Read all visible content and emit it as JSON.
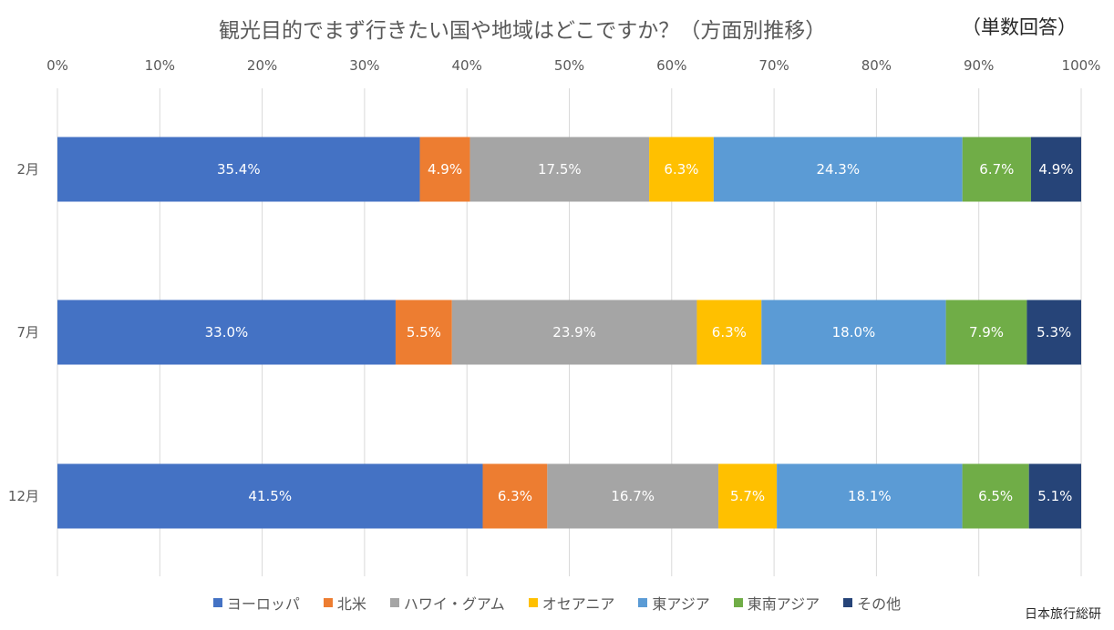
{
  "title": "観光目的でまず行きたい国や地域はどこですか？（方面別推移）",
  "note": "（単数回答）",
  "source": "日本旅行総研",
  "colors": {
    "ヨーロッパ": "#4472C4",
    "北米": "#ED7D31",
    "ハワイ・グアム": "#A5A5A5",
    "オセアニア": "#FFC000",
    "東アジア": "#5B9BD5",
    "東南アジア": "#70AD47",
    "その他": "#264478"
  },
  "chart_data": {
    "type": "bar",
    "orientation": "horizontal",
    "stacked": "percent",
    "title": "観光目的でまず行きたい国や地域はどこですか？（方面別推移）",
    "subtitle": "（単数回答）",
    "categories": [
      "2月",
      "7月",
      "12月"
    ],
    "xlim": [
      0,
      100
    ],
    "x_ticks": [
      "0%",
      "10%",
      "20%",
      "30%",
      "40%",
      "50%",
      "60%",
      "70%",
      "80%",
      "90%",
      "100%"
    ],
    "gridlines": true,
    "legend_position": "bottom",
    "series": [
      {
        "name": "ヨーロッパ",
        "values": [
          35.4,
          33.0,
          41.5
        ],
        "labels": [
          "35.4%",
          "33.0%",
          "41.5%"
        ]
      },
      {
        "name": "北米",
        "values": [
          4.9,
          5.5,
          6.3
        ],
        "labels": [
          "4.9%",
          "5.5%",
          "6.3%"
        ]
      },
      {
        "name": "ハワイ・グアム",
        "values": [
          17.5,
          23.9,
          16.7
        ],
        "labels": [
          "17.5%",
          "23.9%",
          "16.7%"
        ]
      },
      {
        "name": "オセアニア",
        "values": [
          6.3,
          6.3,
          5.7
        ],
        "labels": [
          "6.3%",
          "6.3%",
          "5.7%"
        ]
      },
      {
        "name": "東アジア",
        "values": [
          24.3,
          18.0,
          18.1
        ],
        "labels": [
          "24.3%",
          "18.0%",
          "18.1%"
        ]
      },
      {
        "name": "東南アジア",
        "values": [
          6.7,
          7.9,
          6.5
        ],
        "labels": [
          "6.7%",
          "7.9%",
          "6.5%"
        ]
      },
      {
        "name": "その他",
        "values": [
          4.9,
          5.3,
          5.1
        ],
        "labels": [
          "4.9%",
          "5.3%",
          "5.1%"
        ]
      }
    ]
  }
}
